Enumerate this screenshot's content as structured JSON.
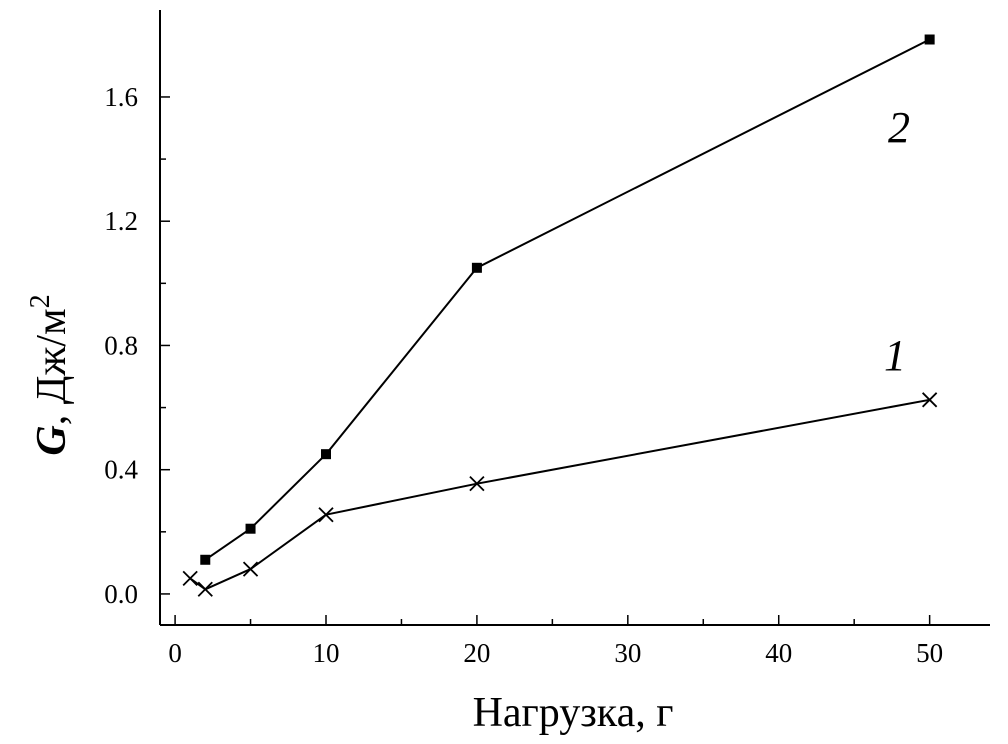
{
  "chart_data": {
    "type": "line",
    "title": "",
    "xlabel": "Нагрузка, г",
    "ylabel": {
      "symbol": "G",
      "unit": ", Дж/м",
      "sup": "2"
    },
    "x_ticks": [
      "0",
      "10",
      "20",
      "30",
      "40",
      "50"
    ],
    "x_tick_positions": [
      0,
      10,
      20,
      30,
      40,
      50
    ],
    "y_ticks": [
      "0.0",
      "0.4",
      "0.8",
      "1.2",
      "1.6"
    ],
    "y_tick_values": [
      0,
      0.4,
      0.8,
      1.2,
      1.6
    ],
    "xlim": [
      -1,
      54
    ],
    "ylim": [
      -0.1,
      1.88
    ],
    "grid": false,
    "series": [
      {
        "name": "1",
        "marker": "cross",
        "x": [
          1,
          2,
          5,
          10,
          20,
          50
        ],
        "y": [
          0.05,
          0.015,
          0.08,
          0.255,
          0.355,
          0.625
        ]
      },
      {
        "name": "2",
        "marker": "square",
        "x": [
          2,
          5,
          10,
          20,
          50
        ],
        "y": [
          0.11,
          0.21,
          0.45,
          1.05,
          1.785
        ]
      }
    ],
    "series_labels": [
      "1",
      "2"
    ]
  },
  "colors": {
    "line": "#000000",
    "background": "#ffffff"
  }
}
